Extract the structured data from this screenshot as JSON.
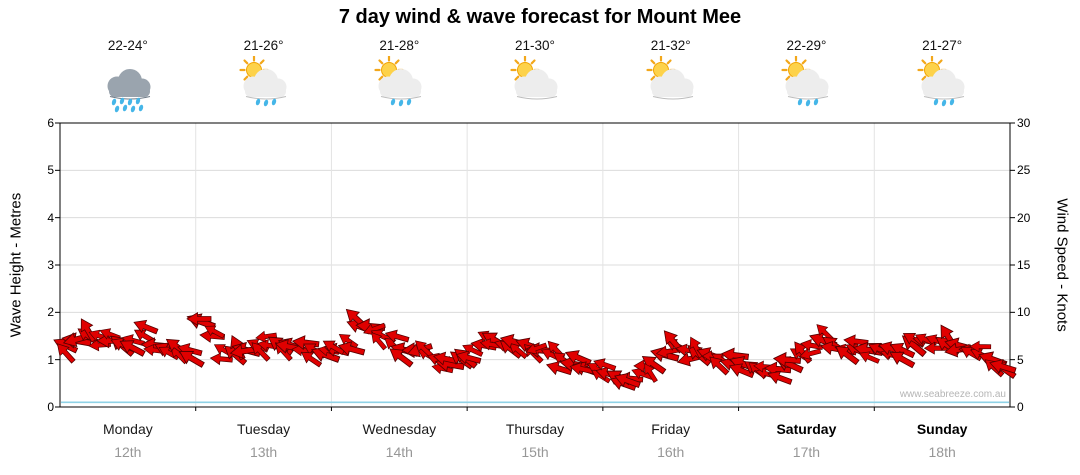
{
  "title": "7 day wind & wave forecast for Mount Mee",
  "watermark": "www.seabreeze.com.au",
  "axes": {
    "left_label": "Wave Height - Metres",
    "right_label": "Wind Speed - Knots",
    "left_ticks": [
      0,
      1,
      2,
      3,
      4,
      5,
      6
    ],
    "right_ticks": [
      0,
      5,
      10,
      15,
      20,
      25,
      30
    ]
  },
  "days": [
    {
      "name": "Monday",
      "date": "12th",
      "temp": "22-24°",
      "icon": "rain",
      "bold": false
    },
    {
      "name": "Tuesday",
      "date": "13th",
      "temp": "21-26°",
      "icon": "sun-cloud-rain",
      "bold": false
    },
    {
      "name": "Wednesday",
      "date": "14th",
      "temp": "21-28°",
      "icon": "sun-cloud-rain",
      "bold": false
    },
    {
      "name": "Thursday",
      "date": "15th",
      "temp": "21-30°",
      "icon": "sun-cloud",
      "bold": false
    },
    {
      "name": "Friday",
      "date": "16th",
      "temp": "21-32°",
      "icon": "sun-cloud",
      "bold": false
    },
    {
      "name": "Saturday",
      "date": "17th",
      "temp": "22-29°",
      "icon": "sun-cloud-rain",
      "bold": true
    },
    {
      "name": "Sunday",
      "date": "18th",
      "temp": "21-27°",
      "icon": "sun-cloud-rain",
      "bold": true
    }
  ],
  "colors": {
    "arrow": "#e00000",
    "arrow_outline": "#550000",
    "grid": "#dcdcdc",
    "day_separator": "#e3e3e3",
    "frame": "#000000",
    "sea_line": "#8fd2e6",
    "date_text": "#979797"
  },
  "chart_data": {
    "type": "wind_arrows",
    "title": "7 day wind & wave forecast for Mount Mee",
    "x_categories": [
      "Monday 12th",
      "Tuesday 13th",
      "Wednesday 14th",
      "Thursday 15th",
      "Friday 16th",
      "Saturday 17th",
      "Sunday 18th"
    ],
    "left_axis": {
      "label": "Wave Height - Metres",
      "range": [
        0,
        6
      ],
      "ticks": [
        0,
        1,
        2,
        3,
        4,
        5,
        6
      ]
    },
    "right_axis": {
      "label": "Wind Speed - Knots",
      "range": [
        0,
        30
      ],
      "ticks": [
        0,
        5,
        10,
        15,
        20,
        25,
        30
      ]
    },
    "grid": true,
    "legend": "none",
    "samples_per_day": 12,
    "wave_height_m": 0.1,
    "wind_speed_knots": [
      6.5,
      7,
      7.5,
      7.5,
      7,
      6.5,
      7,
      7.5,
      6.5,
      6,
      5.5,
      6,
      9,
      7.5,
      6,
      5.5,
      6,
      6.5,
      6.5,
      6.5,
      6.5,
      6,
      6,
      5.5,
      6,
      7,
      8.5,
      8.5,
      7.5,
      6.5,
      6,
      6,
      5.5,
      5,
      4.5,
      5,
      6,
      6.5,
      7,
      6.5,
      6,
      6.5,
      6,
      5.5,
      5,
      4.5,
      4,
      4,
      3.5,
      3,
      3,
      3.5,
      4.5,
      5.5,
      6.5,
      6,
      5.5,
      5.5,
      5,
      4.5,
      4.5,
      4,
      3.5,
      4,
      4.5,
      5.5,
      6.5,
      7,
      6.5,
      6,
      6,
      6,
      6,
      5.5,
      6,
      6.5,
      7,
      7,
      6.5,
      6.5,
      6,
      5.5,
      5,
      4
    ],
    "wind_direction_deg": [
      205,
      190,
      215,
      200,
      180,
      220,
      195,
      210,
      185,
      205,
      225,
      195,
      200,
      185,
      210,
      220,
      195,
      205,
      190,
      215,
      200,
      185,
      210,
      200,
      195,
      215,
      200,
      185,
      205,
      220,
      195,
      180,
      210,
      200,
      190,
      215,
      205,
      190,
      210,
      195,
      220,
      200,
      185,
      205,
      215,
      190,
      200,
      210,
      195,
      210,
      185,
      200,
      215,
      195,
      205,
      190,
      220,
      200,
      210,
      195,
      200,
      215,
      195,
      185,
      205,
      210,
      190,
      200,
      215,
      195,
      205,
      190,
      210,
      195,
      205,
      220,
      190,
      200,
      215,
      195,
      185,
      205,
      200,
      215
    ]
  }
}
